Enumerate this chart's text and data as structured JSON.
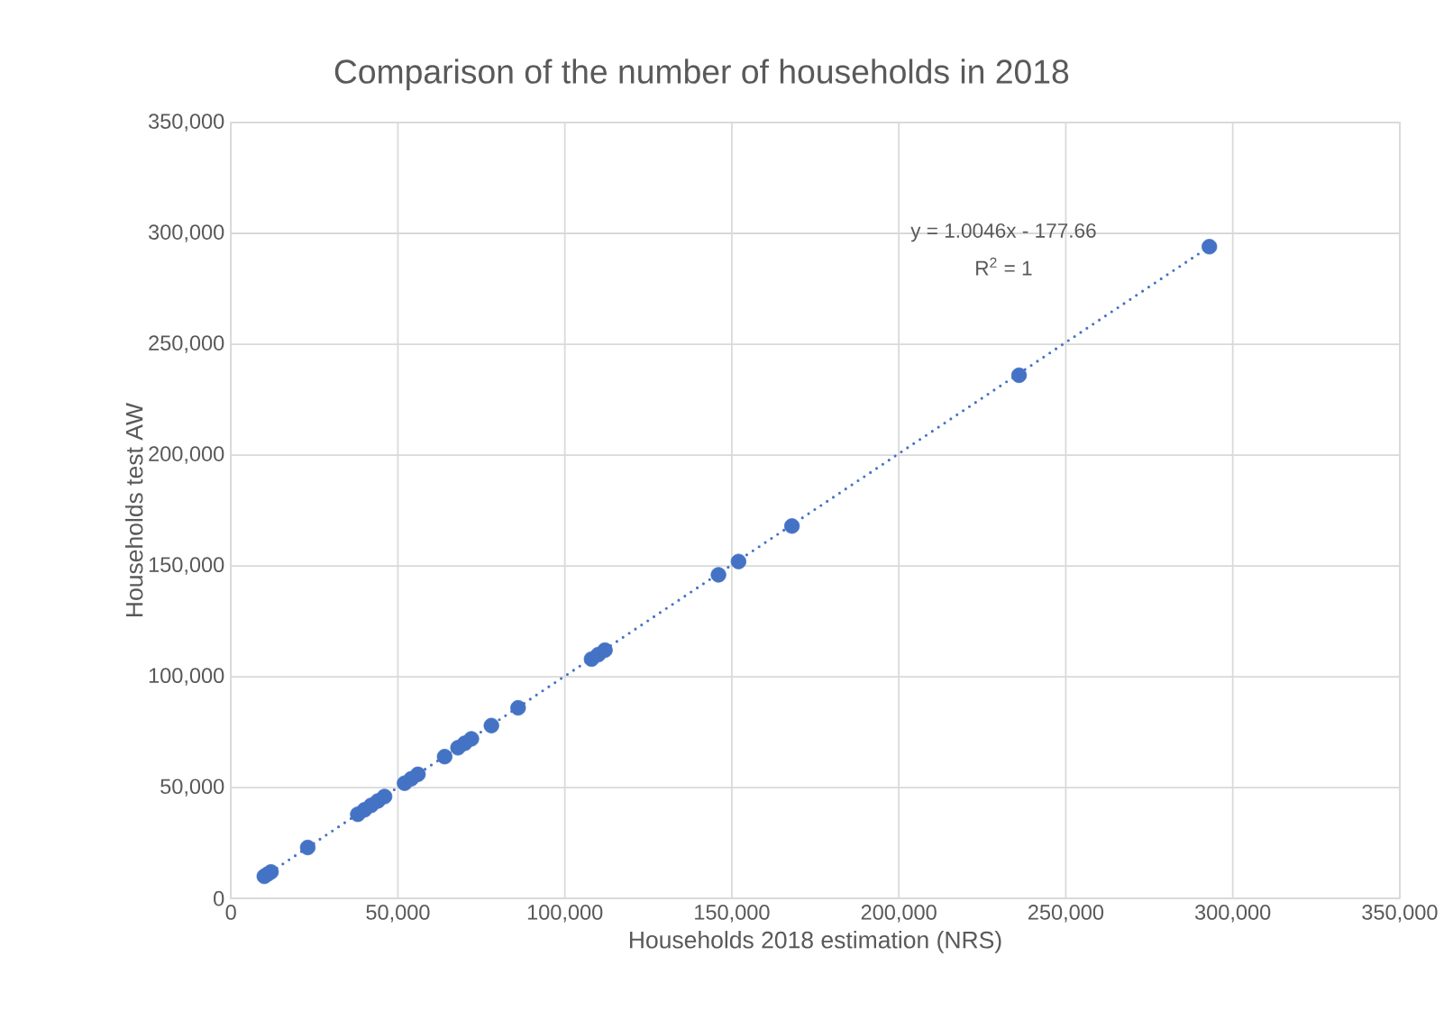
{
  "chart_data": {
    "type": "scatter",
    "title": "Comparison of the number of households in 2018",
    "xlabel": "Households 2018 estimation (NRS)",
    "ylabel": "Households test AW",
    "series": [
      {
        "color": "#4472c4",
        "marker": "circle",
        "x": [
          10000,
          11000,
          12000,
          23000,
          38000,
          40000,
          42000,
          44000,
          46000,
          52000,
          54000,
          56000,
          64000,
          68000,
          70000,
          72000,
          78000,
          86000,
          108000,
          110000,
          112000,
          146000,
          152000,
          168000,
          236000,
          293000
        ],
        "values": [
          10000,
          11000,
          12000,
          23000,
          38000,
          40000,
          42000,
          44000,
          46000,
          52000,
          54000,
          56000,
          64000,
          68000,
          70000,
          72000,
          78000,
          86000,
          108000,
          110000,
          112000,
          146000,
          152000,
          168000,
          236000,
          294000
        ]
      },
      {
        "type": "line",
        "color": "#4472c4",
        "line_style": "dotted",
        "x": [
          10000,
          293000
        ],
        "values": [
          10000,
          294000
        ]
      }
    ],
    "xlim": [
      0,
      350000
    ],
    "ylim": [
      0,
      350000
    ],
    "xticks": [
      0,
      {
        "value": 50000,
        "label": "50,000"
      },
      {
        "value": 100000,
        "label": "100,000"
      },
      {
        "value": 150000,
        "label": "150,000"
      },
      {
        "value": 200000,
        "label": "200,000"
      },
      {
        "value": 250000,
        "label": "250,000"
      },
      {
        "value": 300000,
        "label": "300,000"
      },
      {
        "value": 350000,
        "label": "350,000"
      }
    ],
    "yticks": [
      0,
      {
        "value": 50000,
        "label": "50,000"
      },
      {
        "value": 100000,
        "label": "100,000"
      },
      {
        "value": 150000,
        "label": "150,000"
      },
      {
        "value": 200000,
        "label": "200,000"
      },
      {
        "value": 250000,
        "label": "250,000"
      },
      {
        "value": 300000,
        "label": "300,000"
      },
      {
        "value": 350000,
        "label": "350,000"
      }
    ],
    "grid": true,
    "annotations": [
      "y = 1.0046x - 177.66",
      "R$^{2}$ = 1"
    ]
  }
}
